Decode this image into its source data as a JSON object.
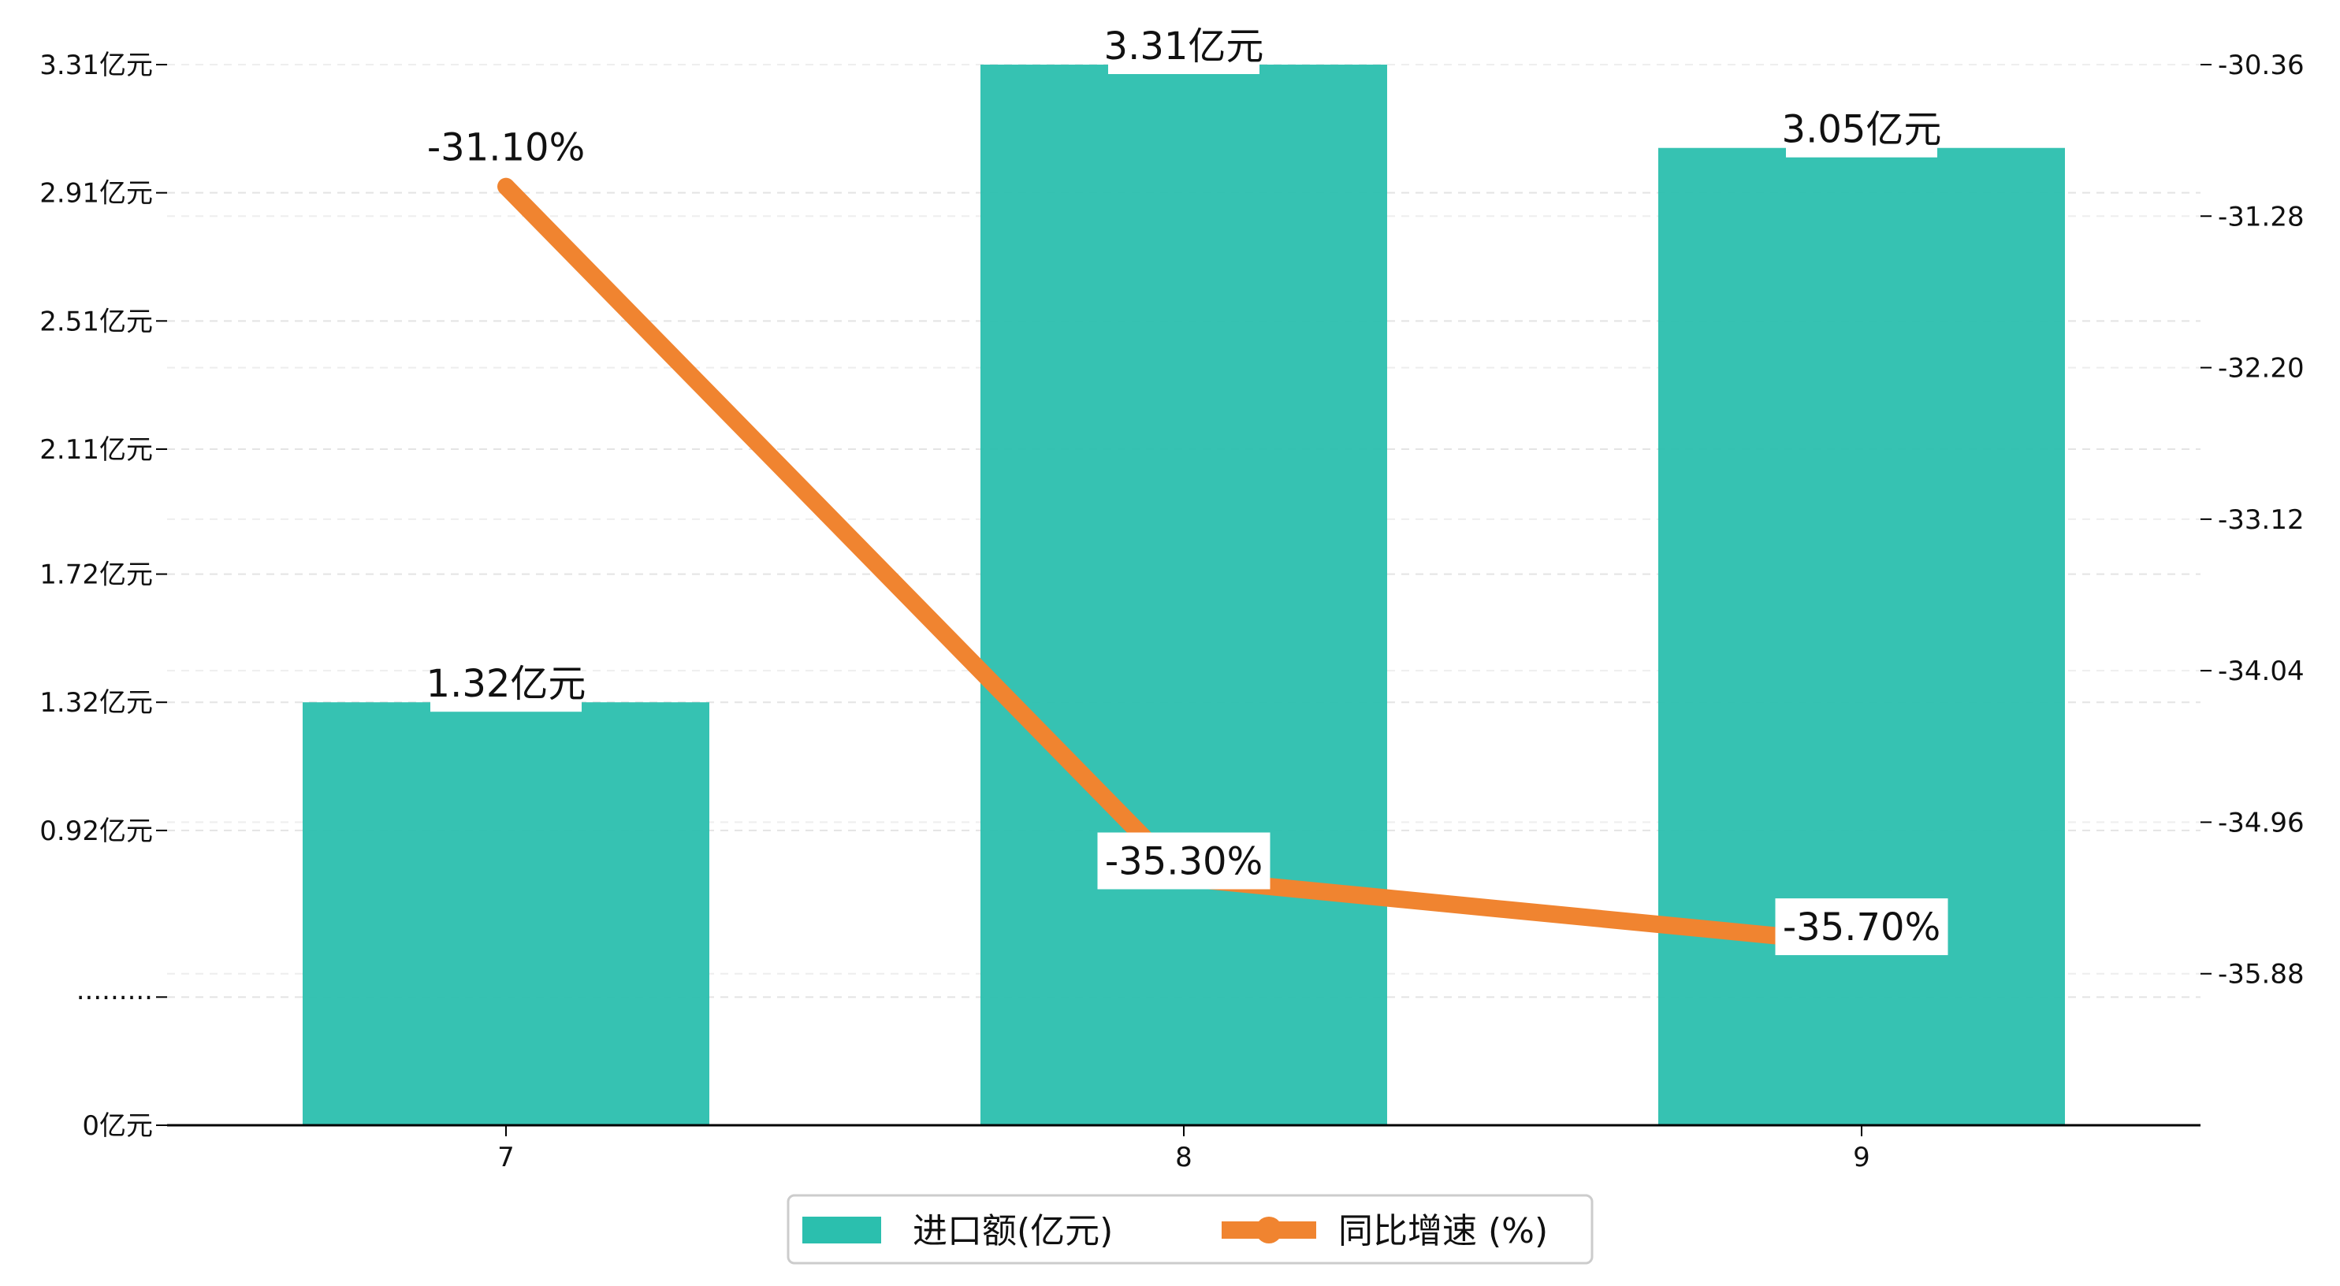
{
  "chart_data": {
    "type": "bar+line",
    "categories": [
      "7",
      "8",
      "9"
    ],
    "series": [
      {
        "name": "进口额(亿元)",
        "type": "bar",
        "axis": "left",
        "color": "#2bbfae",
        "values": [
          1.32,
          3.31,
          3.05
        ],
        "labels": [
          "1.32亿元",
          "3.31亿元",
          "3.05亿元"
        ]
      },
      {
        "name": "同比增速 (%)",
        "type": "line",
        "axis": "right",
        "color": "#f08430",
        "values": [
          -31.1,
          -35.3,
          -35.7
        ],
        "labels": [
          "-31.10%",
          "-35.30%",
          "-35.70%"
        ]
      }
    ],
    "y_left": {
      "ylim": [
        0,
        3.31
      ],
      "ticks": [
        0,
        0.4,
        0.92,
        1.32,
        1.72,
        2.11,
        2.51,
        2.91,
        3.31
      ],
      "tick_labels": [
        "0亿元",
        "·········",
        "0.92亿元",
        "1.32亿元",
        "1.72亿元",
        "2.11亿元",
        "2.51亿元",
        "2.91亿元",
        "3.31亿元"
      ]
    },
    "y_right": {
      "ylim": [
        -36.8,
        -30.36
      ],
      "ticks": [
        -35.88,
        -34.96,
        -34.04,
        -33.12,
        -32.2,
        -31.28,
        -30.36
      ],
      "tick_labels": [
        "-35.88",
        "-34.96",
        "-34.04",
        "-33.12",
        "-32.20",
        "-31.28",
        "-30.36"
      ]
    },
    "grid": "horizontal-dashed",
    "legend_position": "bottom-center"
  }
}
